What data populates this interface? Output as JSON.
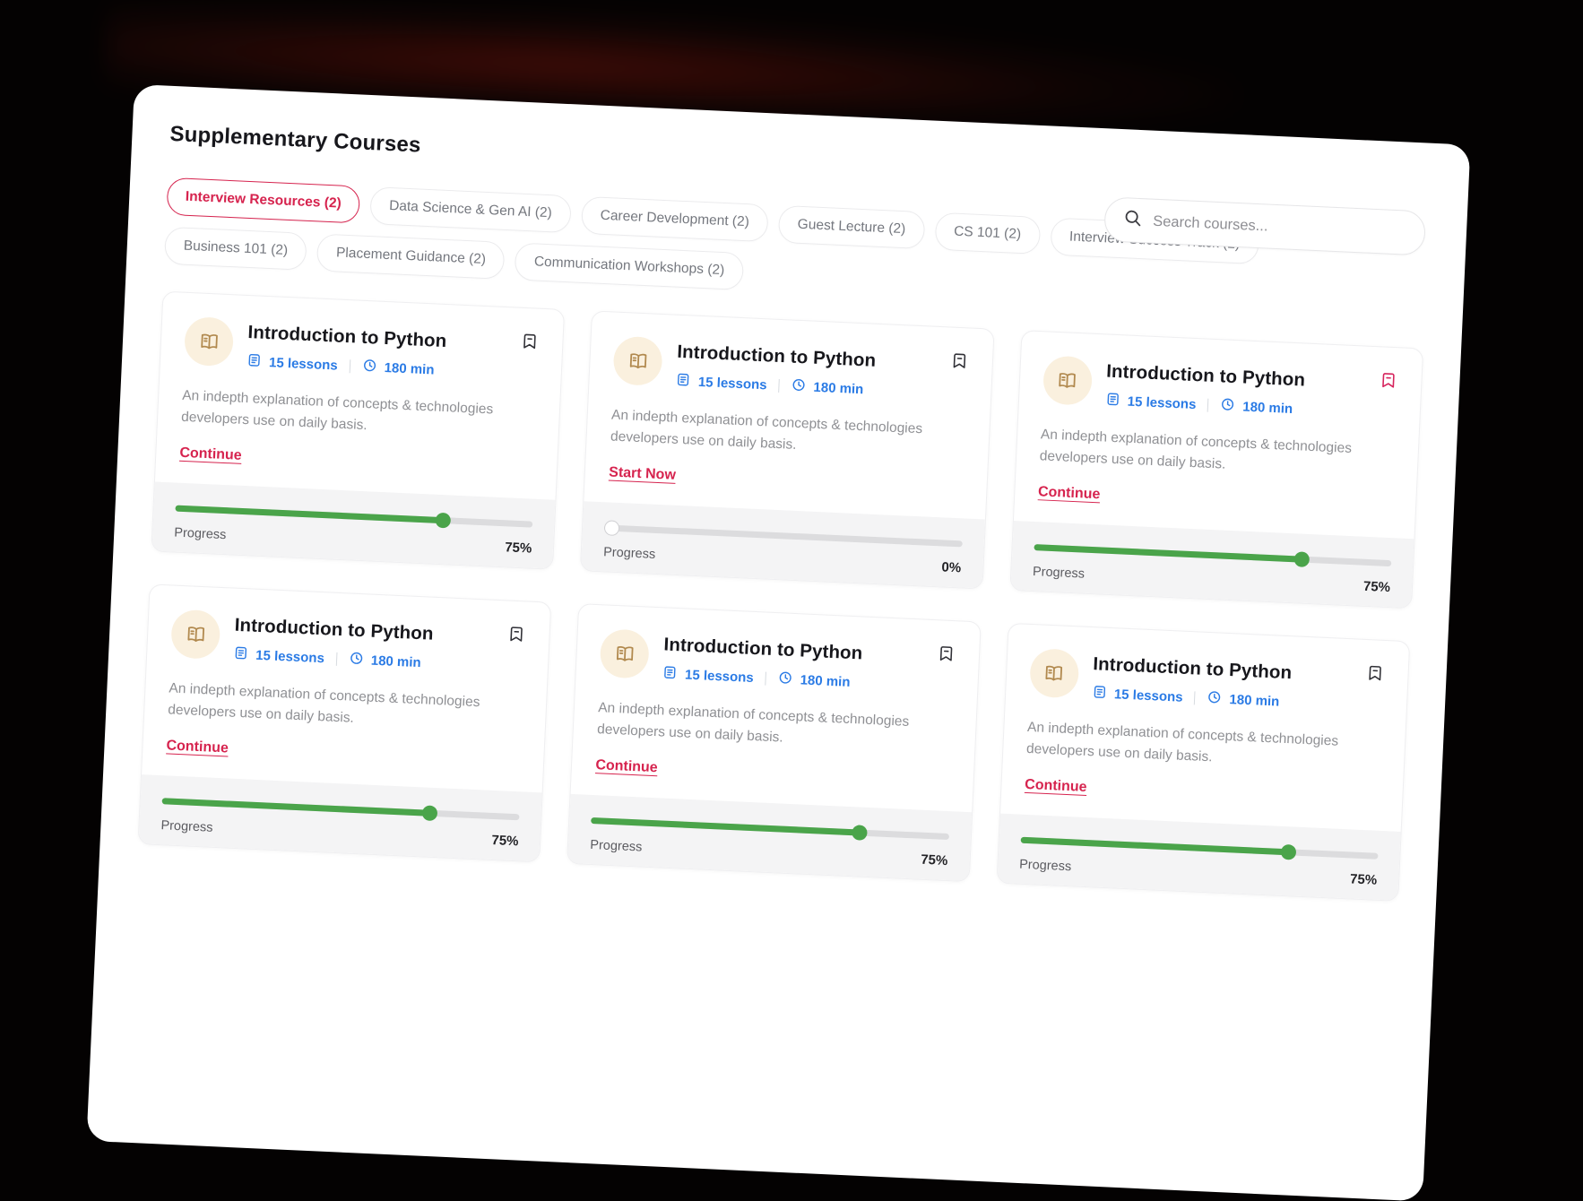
{
  "page": {
    "title": "Supplementary Courses"
  },
  "search": {
    "placeholder": "Search courses...",
    "icon": "magnifier-icon"
  },
  "filters": [
    {
      "label": "Interview Resources (2)",
      "active": true
    },
    {
      "label": "Data Science & Gen AI (2)",
      "active": false
    },
    {
      "label": "Career Development (2)",
      "active": false
    },
    {
      "label": "Guest Lecture (2)",
      "active": false
    },
    {
      "label": "CS 101 (2)",
      "active": false
    },
    {
      "label": "Interview Success Track (2)",
      "active": false
    },
    {
      "label": "Business 101 (2)",
      "active": false
    },
    {
      "label": "Placement Guidance (2)",
      "active": false
    },
    {
      "label": "Communication Workshops (2)",
      "active": false
    }
  ],
  "cards": [
    {
      "title": "Introduction to Python",
      "lessons": "15 lessons",
      "duration": "180 min",
      "description": "An indepth explanation of concepts & technologies developers use on daily basis.",
      "link": "Continue",
      "progress_label": "Progress",
      "progress_percent": "75%",
      "progress": 75,
      "bookmark": "default"
    },
    {
      "title": "Introduction to Python",
      "lessons": "15 lessons",
      "duration": "180 min",
      "description": "An indepth explanation of concepts & technologies developers use on daily basis.",
      "link": "Start Now",
      "progress_label": "Progress",
      "progress_percent": "0%",
      "progress": 0,
      "bookmark": "default"
    },
    {
      "title": "Introduction to Python",
      "lessons": "15 lessons",
      "duration": "180 min",
      "description": "An indepth explanation of concepts & technologies developers use on daily basis.",
      "link": "Continue",
      "progress_label": "Progress",
      "progress_percent": "75%",
      "progress": 75,
      "bookmark": "accent"
    },
    {
      "title": "Introduction to Python",
      "lessons": "15 lessons",
      "duration": "180 min",
      "description": "An indepth explanation of concepts & technologies developers use on daily basis.",
      "link": "Continue",
      "progress_label": "Progress",
      "progress_percent": "75%",
      "progress": 75,
      "bookmark": "default"
    },
    {
      "title": "Introduction to Python",
      "lessons": "15 lessons",
      "duration": "180 min",
      "description": "An indepth explanation of concepts & technologies developers use on daily basis.",
      "link": "Continue",
      "progress_label": "Progress",
      "progress_percent": "75%",
      "progress": 75,
      "bookmark": "default"
    },
    {
      "title": "Introduction to Python",
      "lessons": "15 lessons",
      "duration": "180 min",
      "description": "An indepth explanation of concepts & technologies developers use on daily basis.",
      "link": "Continue",
      "progress_label": "Progress",
      "progress_percent": "75%",
      "progress": 75,
      "bookmark": "default"
    }
  ],
  "icons": {
    "course": "open-book-icon",
    "lessons": "document-lines-icon",
    "duration": "clock-icon",
    "bookmark": "bookmark-minus-icon",
    "search": "magnifier-icon"
  },
  "colors": {
    "accent_red": "#d6234e",
    "bookmark_red": "#d6235c",
    "meta_blue": "#2b7be5",
    "progress_green": "#4aa44a",
    "icon_tan": "#b1894e",
    "icon_bg_cream": "#faf0de",
    "footer_gray": "#f4f4f5",
    "background": "#040202"
  }
}
